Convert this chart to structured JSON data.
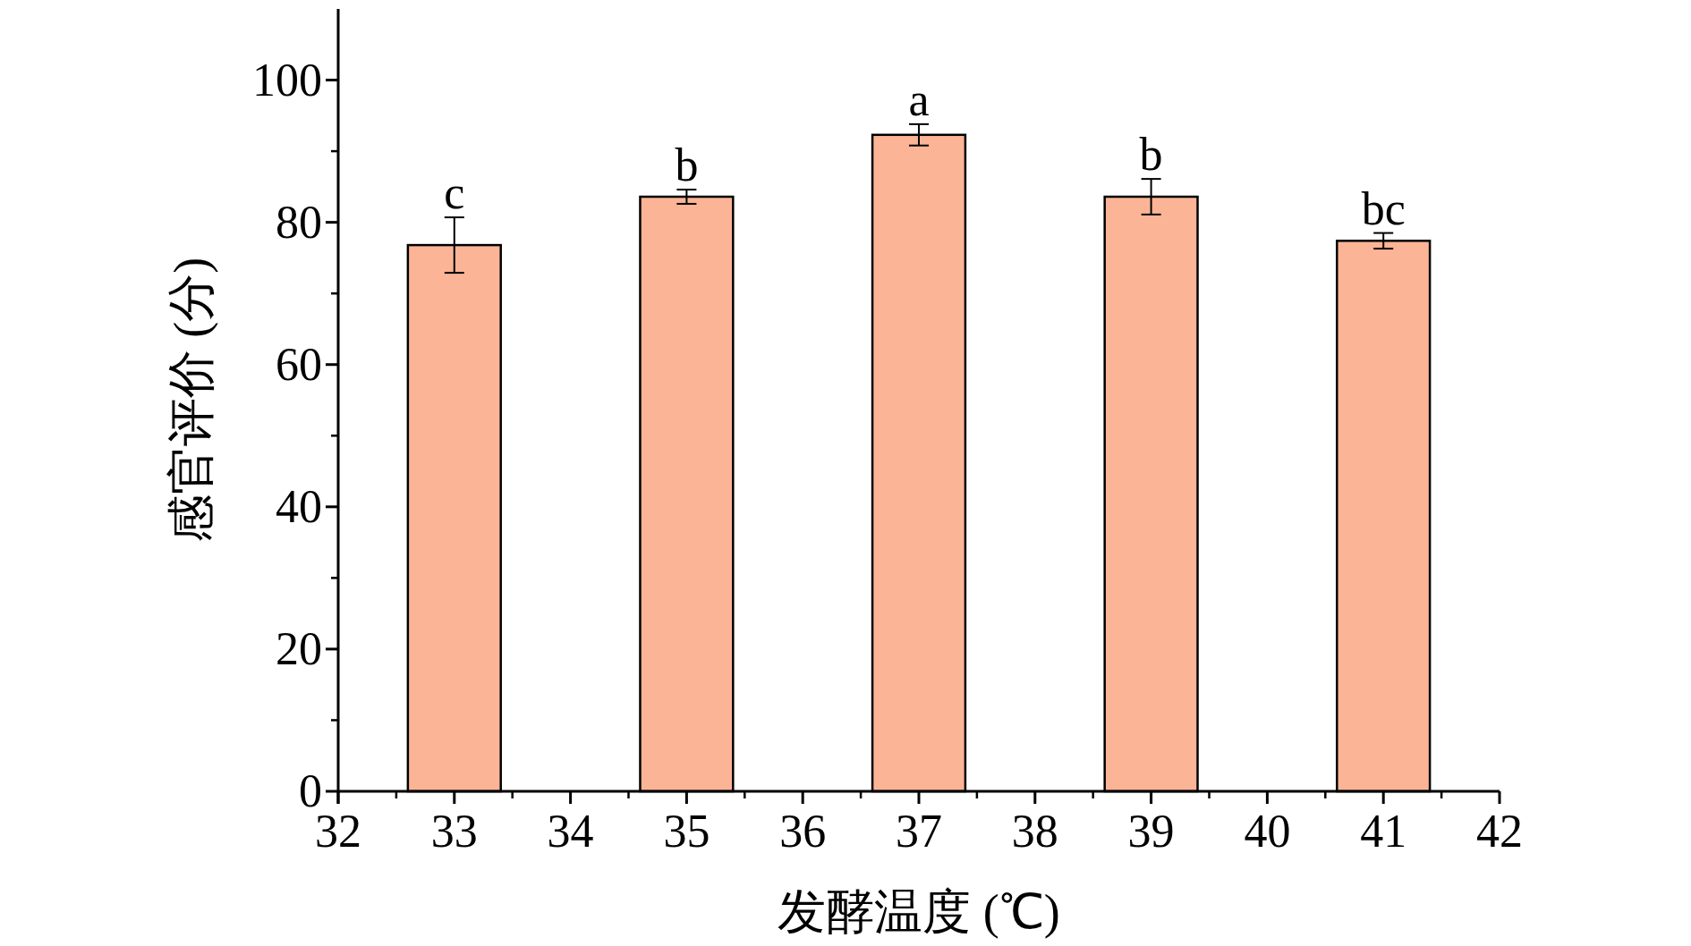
{
  "chart_data": {
    "type": "bar",
    "xlabel": "发酵温度 (℃)",
    "ylabel": "感官评价 (分)",
    "x": [
      33,
      35,
      37,
      39,
      41
    ],
    "values": [
      76.8,
      83.6,
      92.3,
      83.6,
      77.4
    ],
    "errors": [
      3.9,
      1.0,
      1.5,
      2.5,
      1.1
    ],
    "value_labels": [
      "c",
      "b",
      "a",
      "b",
      "bc"
    ],
    "color": "#fbb496",
    "xlim": [
      32,
      42
    ],
    "xticks": [
      32,
      33,
      34,
      35,
      36,
      37,
      38,
      39,
      40,
      41,
      42
    ],
    "ylim": [
      0,
      110
    ],
    "yticks": [
      0,
      20,
      40,
      60,
      80,
      100
    ],
    "grid": false
  }
}
